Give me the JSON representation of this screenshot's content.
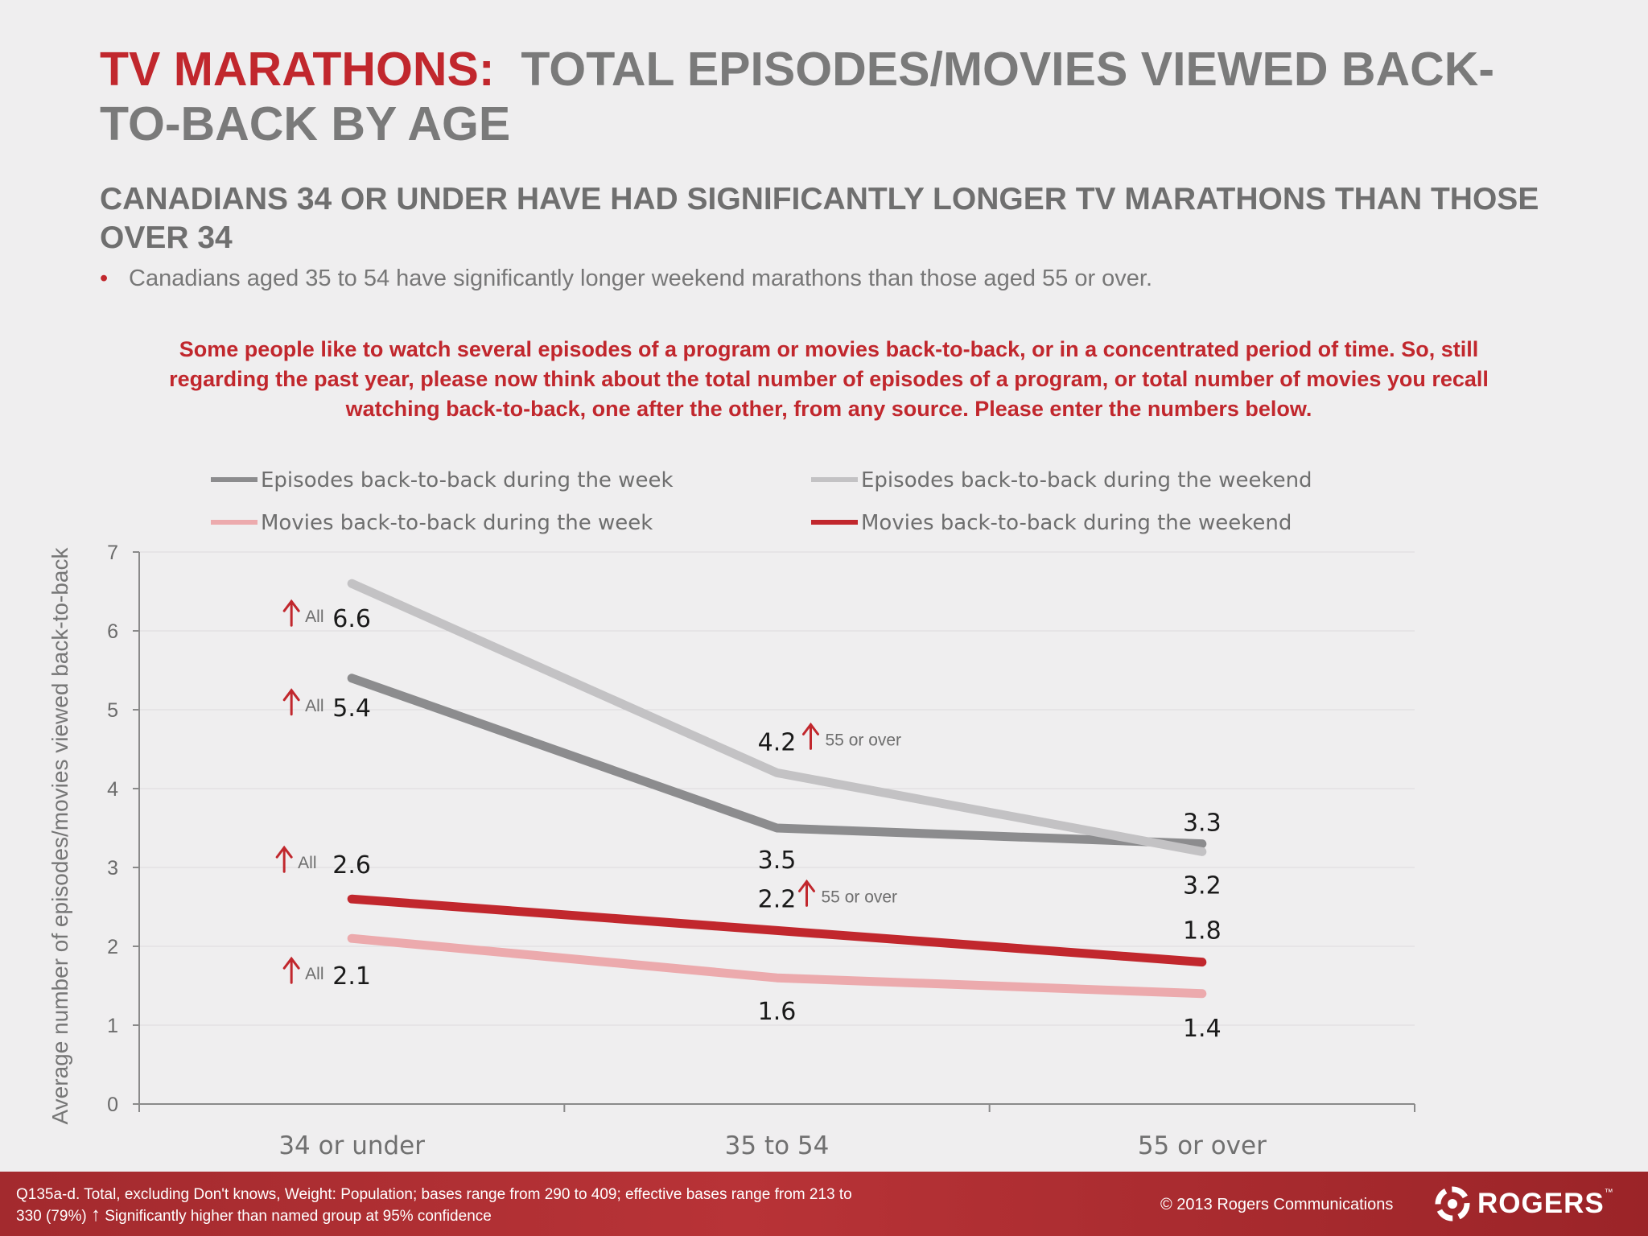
{
  "header": {
    "title_accent": "TV MARATHONS:",
    "title_rest": "TOTAL EPISODES/MOVIES VIEWED BACK-TO-BACK BY AGE",
    "subtitle": "CANADIANS 34 OR UNDER HAVE HAD SIGNIFICANTLY LONGER TV MARATHONS THAN THOSE OVER 34",
    "bullet_marker": "•",
    "bullet": "Canadians aged 35 to 54 have significantly longer weekend marathons than those aged 55 or over.",
    "question": "Some people like to watch several episodes of a program or movies back-to-back, or in a concentrated period of time. So, still regarding the past year, please now think about the total number of episodes of a program, or total number of movies you recall watching back-to-back, one after the other, from any source. Please enter the numbers below."
  },
  "chart_data": {
    "type": "line",
    "categories": [
      "34 or under",
      "35 to 54",
      "55 or over"
    ],
    "ylabel": "Average number of episodes/movies viewed back-to-back",
    "ylim": [
      0,
      7
    ],
    "yticks": [
      "0",
      "1",
      "2",
      "3",
      "4",
      "5",
      "6",
      "7"
    ],
    "grid": true,
    "legend_position": "top",
    "series": [
      {
        "name": "Episodes back-to-back during the week",
        "color": "#8c8c8e",
        "values": [
          5.4,
          3.5,
          3.3
        ],
        "labels": [
          "5.4",
          "3.5",
          "3.3"
        ]
      },
      {
        "name": "Episodes back-to-back during the weekend",
        "color": "#c3c2c4",
        "values": [
          6.6,
          4.2,
          3.2
        ],
        "labels": [
          "6.6",
          "4.2",
          "3.2"
        ]
      },
      {
        "name": "Movies back-to-back during the week",
        "color": "#ecaaad",
        "values": [
          2.1,
          1.6,
          1.4
        ],
        "labels": [
          "2.1",
          "1.6",
          "1.4"
        ]
      },
      {
        "name": "Movies back-to-back during the weekend",
        "color": "#c1272d",
        "values": [
          2.6,
          2.2,
          1.8
        ],
        "labels": [
          "2.6",
          "2.2",
          "1.8"
        ]
      }
    ],
    "annotations": [
      {
        "series": 1,
        "point": 0,
        "text": "All"
      },
      {
        "series": 0,
        "point": 0,
        "text": "All"
      },
      {
        "series": 3,
        "point": 0,
        "text": "All"
      },
      {
        "series": 2,
        "point": 0,
        "text": "All"
      },
      {
        "series": 1,
        "point": 1,
        "text": "55 or over"
      },
      {
        "series": 3,
        "point": 1,
        "text": "55 or over"
      }
    ],
    "marker_color": "#c1272d"
  },
  "footer": {
    "note_line1": "Q135a-d. Total, excluding Don't knows, Weight: Population;  bases range from 290 to 409;  effective bases range from 213 to",
    "note_line2_prefix": "330 (79%)",
    "note_arrow": "↑",
    "note_line2_suffix": "Significantly higher than named group at 95% confidence",
    "copyright": "© 2013 Rogers Communications",
    "logo_text": "ROGERS",
    "logo_tm": "™",
    "logo_icon": "rogers-swirl-icon"
  }
}
